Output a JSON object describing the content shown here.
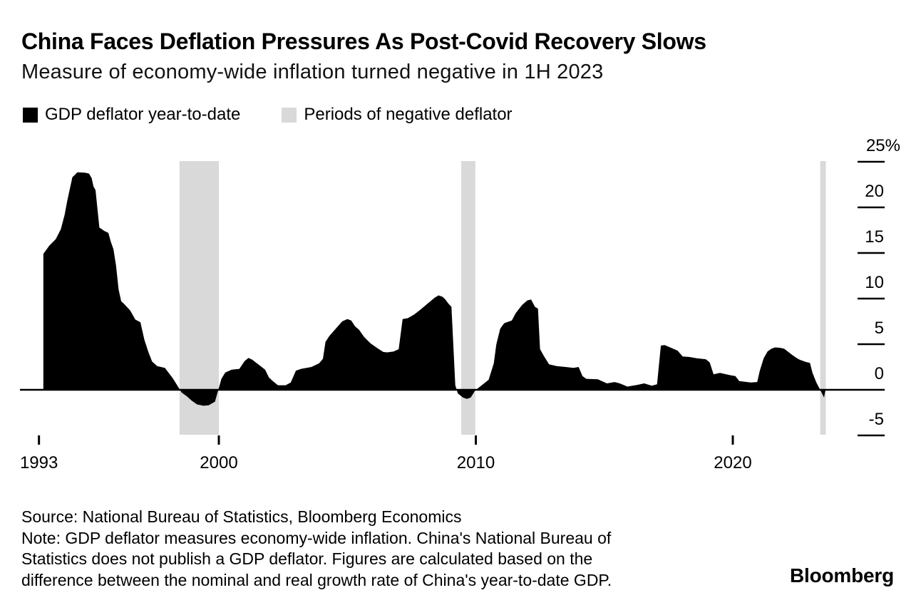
{
  "header": {
    "title": "China Faces Deflation Pressures As Post-Covid Recovery Slows",
    "subtitle": "Measure of economy-wide inflation turned negative in 1H 2023"
  },
  "legend": {
    "items": [
      {
        "label": "GDP deflator year-to-date",
        "color": "#000000",
        "type": "area"
      },
      {
        "label": "Periods of negative deflator",
        "color": "#d9d9d9",
        "type": "band"
      }
    ]
  },
  "footer": {
    "source": "Source: National Bureau of Statistics, Bloomberg Economics",
    "note_lines": [
      "Note: GDP deflator measures economy-wide inflation. China's National Bureau of",
      "Statistics does not publish a GDP deflator. Figures are calculated based on the",
      "difference between the nominal and real growth rate of China's year-to-date GDP."
    ],
    "logo": "Bloomberg"
  },
  "chart_data": {
    "type": "area",
    "title": "China Faces Deflation Pressures As Post-Covid Recovery Slows",
    "subtitle": "Measure of economy-wide inflation turned negative in 1H 2023",
    "xlabel": "",
    "ylabel": "%",
    "y_axis_side": "right",
    "grid": false,
    "legend_position": "top",
    "xlim": [
      1992.3,
      2023.9
    ],
    "ylim": [
      -6.5,
      26
    ],
    "baseline": 0,
    "x_ticks": [
      {
        "value": 1993,
        "label": "1993"
      },
      {
        "value": 2000,
        "label": "2000"
      },
      {
        "value": 2010,
        "label": "2010"
      },
      {
        "value": 2020,
        "label": "2020"
      }
    ],
    "y_ticks": [
      {
        "value": 25,
        "label": "25%"
      },
      {
        "value": 20,
        "label": "20"
      },
      {
        "value": 15,
        "label": "15"
      },
      {
        "value": 10,
        "label": "10"
      },
      {
        "value": 5,
        "label": "5"
      },
      {
        "value": 0,
        "label": "0"
      },
      {
        "value": -5,
        "label": "-5"
      }
    ],
    "bands": {
      "label": "Periods of negative deflator",
      "color": "#d9d9d9",
      "ranges": [
        [
          1998.47,
          2000.0
        ],
        [
          2009.43,
          2009.98
        ],
        [
          2023.4,
          2023.62
        ]
      ]
    },
    "series": [
      {
        "name": "GDP deflator year-to-date",
        "color": "#000000",
        "unit": "%",
        "points": [
          [
            1993.17,
            14.9
          ],
          [
            1993.4,
            15.8
          ],
          [
            1993.65,
            16.5
          ],
          [
            1993.85,
            17.6
          ],
          [
            1994.0,
            19.2
          ],
          [
            1994.1,
            20.7
          ],
          [
            1994.3,
            23.3
          ],
          [
            1994.5,
            23.85
          ],
          [
            1994.8,
            23.8
          ],
          [
            1994.95,
            23.7
          ],
          [
            1995.05,
            23.2
          ],
          [
            1995.12,
            22.3
          ],
          [
            1995.2,
            21.9
          ],
          [
            1995.35,
            17.8
          ],
          [
            1995.55,
            17.4
          ],
          [
            1995.7,
            17.2
          ],
          [
            1995.8,
            16.2
          ],
          [
            1995.9,
            15.4
          ],
          [
            1996.0,
            13.6
          ],
          [
            1996.1,
            11.0
          ],
          [
            1996.2,
            9.7
          ],
          [
            1996.3,
            9.45
          ],
          [
            1996.55,
            8.7
          ],
          [
            1996.75,
            7.7
          ],
          [
            1996.95,
            7.4
          ],
          [
            1997.1,
            5.5
          ],
          [
            1997.25,
            4.2
          ],
          [
            1997.4,
            3.1
          ],
          [
            1997.6,
            2.6
          ],
          [
            1997.9,
            2.4
          ],
          [
            1998.2,
            1.3
          ],
          [
            1998.4,
            0.4
          ],
          [
            1998.55,
            -0.3
          ],
          [
            1998.75,
            -0.7
          ],
          [
            1998.95,
            -1.2
          ],
          [
            1999.15,
            -1.6
          ],
          [
            1999.4,
            -1.75
          ],
          [
            1999.6,
            -1.7
          ],
          [
            1999.85,
            -1.3
          ],
          [
            2000.0,
            0.2
          ],
          [
            2000.1,
            1.2
          ],
          [
            2000.25,
            1.9
          ],
          [
            2000.5,
            2.2
          ],
          [
            2000.8,
            2.3
          ],
          [
            2001.0,
            3.15
          ],
          [
            2001.15,
            3.5
          ],
          [
            2001.3,
            3.3
          ],
          [
            2001.55,
            2.75
          ],
          [
            2001.8,
            2.2
          ],
          [
            2001.95,
            1.35
          ],
          [
            2002.1,
            0.95
          ],
          [
            2002.3,
            0.5
          ],
          [
            2002.6,
            0.5
          ],
          [
            2002.8,
            0.8
          ],
          [
            2003.0,
            2.1
          ],
          [
            2003.2,
            2.3
          ],
          [
            2003.6,
            2.5
          ],
          [
            2003.9,
            2.9
          ],
          [
            2004.05,
            3.4
          ],
          [
            2004.15,
            5.25
          ],
          [
            2004.3,
            5.9
          ],
          [
            2004.55,
            6.7
          ],
          [
            2004.8,
            7.5
          ],
          [
            2005.0,
            7.75
          ],
          [
            2005.15,
            7.6
          ],
          [
            2005.3,
            6.95
          ],
          [
            2005.45,
            6.6
          ],
          [
            2005.65,
            5.8
          ],
          [
            2005.9,
            5.1
          ],
          [
            2006.2,
            4.5
          ],
          [
            2006.4,
            4.15
          ],
          [
            2006.55,
            4.1
          ],
          [
            2006.8,
            4.2
          ],
          [
            2007.0,
            4.45
          ],
          [
            2007.15,
            7.75
          ],
          [
            2007.35,
            7.85
          ],
          [
            2007.6,
            8.25
          ],
          [
            2007.85,
            8.8
          ],
          [
            2008.1,
            9.4
          ],
          [
            2008.4,
            10.1
          ],
          [
            2008.55,
            10.35
          ],
          [
            2008.7,
            10.2
          ],
          [
            2008.8,
            9.95
          ],
          [
            2008.95,
            9.4
          ],
          [
            2009.05,
            9.1
          ],
          [
            2009.2,
            0.5
          ],
          [
            2009.3,
            -0.4
          ],
          [
            2009.5,
            -0.85
          ],
          [
            2009.65,
            -1.0
          ],
          [
            2009.8,
            -0.85
          ],
          [
            2009.97,
            -0.1
          ],
          [
            2010.1,
            0.2
          ],
          [
            2010.5,
            1.1
          ],
          [
            2010.7,
            2.9
          ],
          [
            2010.8,
            5.0
          ],
          [
            2010.95,
            6.7
          ],
          [
            2011.1,
            7.3
          ],
          [
            2011.25,
            7.45
          ],
          [
            2011.4,
            7.6
          ],
          [
            2011.55,
            8.4
          ],
          [
            2011.8,
            9.3
          ],
          [
            2012.0,
            9.8
          ],
          [
            2012.15,
            9.9
          ],
          [
            2012.3,
            9.1
          ],
          [
            2012.42,
            8.9
          ],
          [
            2012.5,
            4.45
          ],
          [
            2012.65,
            3.7
          ],
          [
            2012.85,
            2.8
          ],
          [
            2013.15,
            2.6
          ],
          [
            2013.5,
            2.5
          ],
          [
            2013.8,
            2.4
          ],
          [
            2014.0,
            2.5
          ],
          [
            2014.15,
            1.5
          ],
          [
            2014.3,
            1.2
          ],
          [
            2014.75,
            1.15
          ],
          [
            2015.1,
            0.7
          ],
          [
            2015.4,
            0.85
          ],
          [
            2015.6,
            0.7
          ],
          [
            2015.9,
            0.35
          ],
          [
            2016.3,
            0.55
          ],
          [
            2016.55,
            0.7
          ],
          [
            2016.85,
            0.45
          ],
          [
            2017.05,
            0.6
          ],
          [
            2017.2,
            4.85
          ],
          [
            2017.35,
            4.9
          ],
          [
            2017.6,
            4.6
          ],
          [
            2017.85,
            4.3
          ],
          [
            2018.05,
            3.65
          ],
          [
            2018.3,
            3.6
          ],
          [
            2018.6,
            3.45
          ],
          [
            2018.95,
            3.35
          ],
          [
            2019.1,
            3.0
          ],
          [
            2019.25,
            1.7
          ],
          [
            2019.5,
            1.85
          ],
          [
            2019.9,
            1.6
          ],
          [
            2020.1,
            1.5
          ],
          [
            2020.25,
            0.95
          ],
          [
            2020.7,
            0.8
          ],
          [
            2020.95,
            0.85
          ],
          [
            2021.05,
            2.1
          ],
          [
            2021.2,
            3.45
          ],
          [
            2021.35,
            4.2
          ],
          [
            2021.5,
            4.5
          ],
          [
            2021.65,
            4.65
          ],
          [
            2021.85,
            4.6
          ],
          [
            2022.0,
            4.5
          ],
          [
            2022.3,
            3.85
          ],
          [
            2022.45,
            3.55
          ],
          [
            2022.6,
            3.3
          ],
          [
            2022.85,
            3.05
          ],
          [
            2023.0,
            2.95
          ],
          [
            2023.1,
            1.85
          ],
          [
            2023.25,
            0.8
          ],
          [
            2023.4,
            0.0
          ],
          [
            2023.55,
            -0.85
          ]
        ]
      }
    ]
  }
}
